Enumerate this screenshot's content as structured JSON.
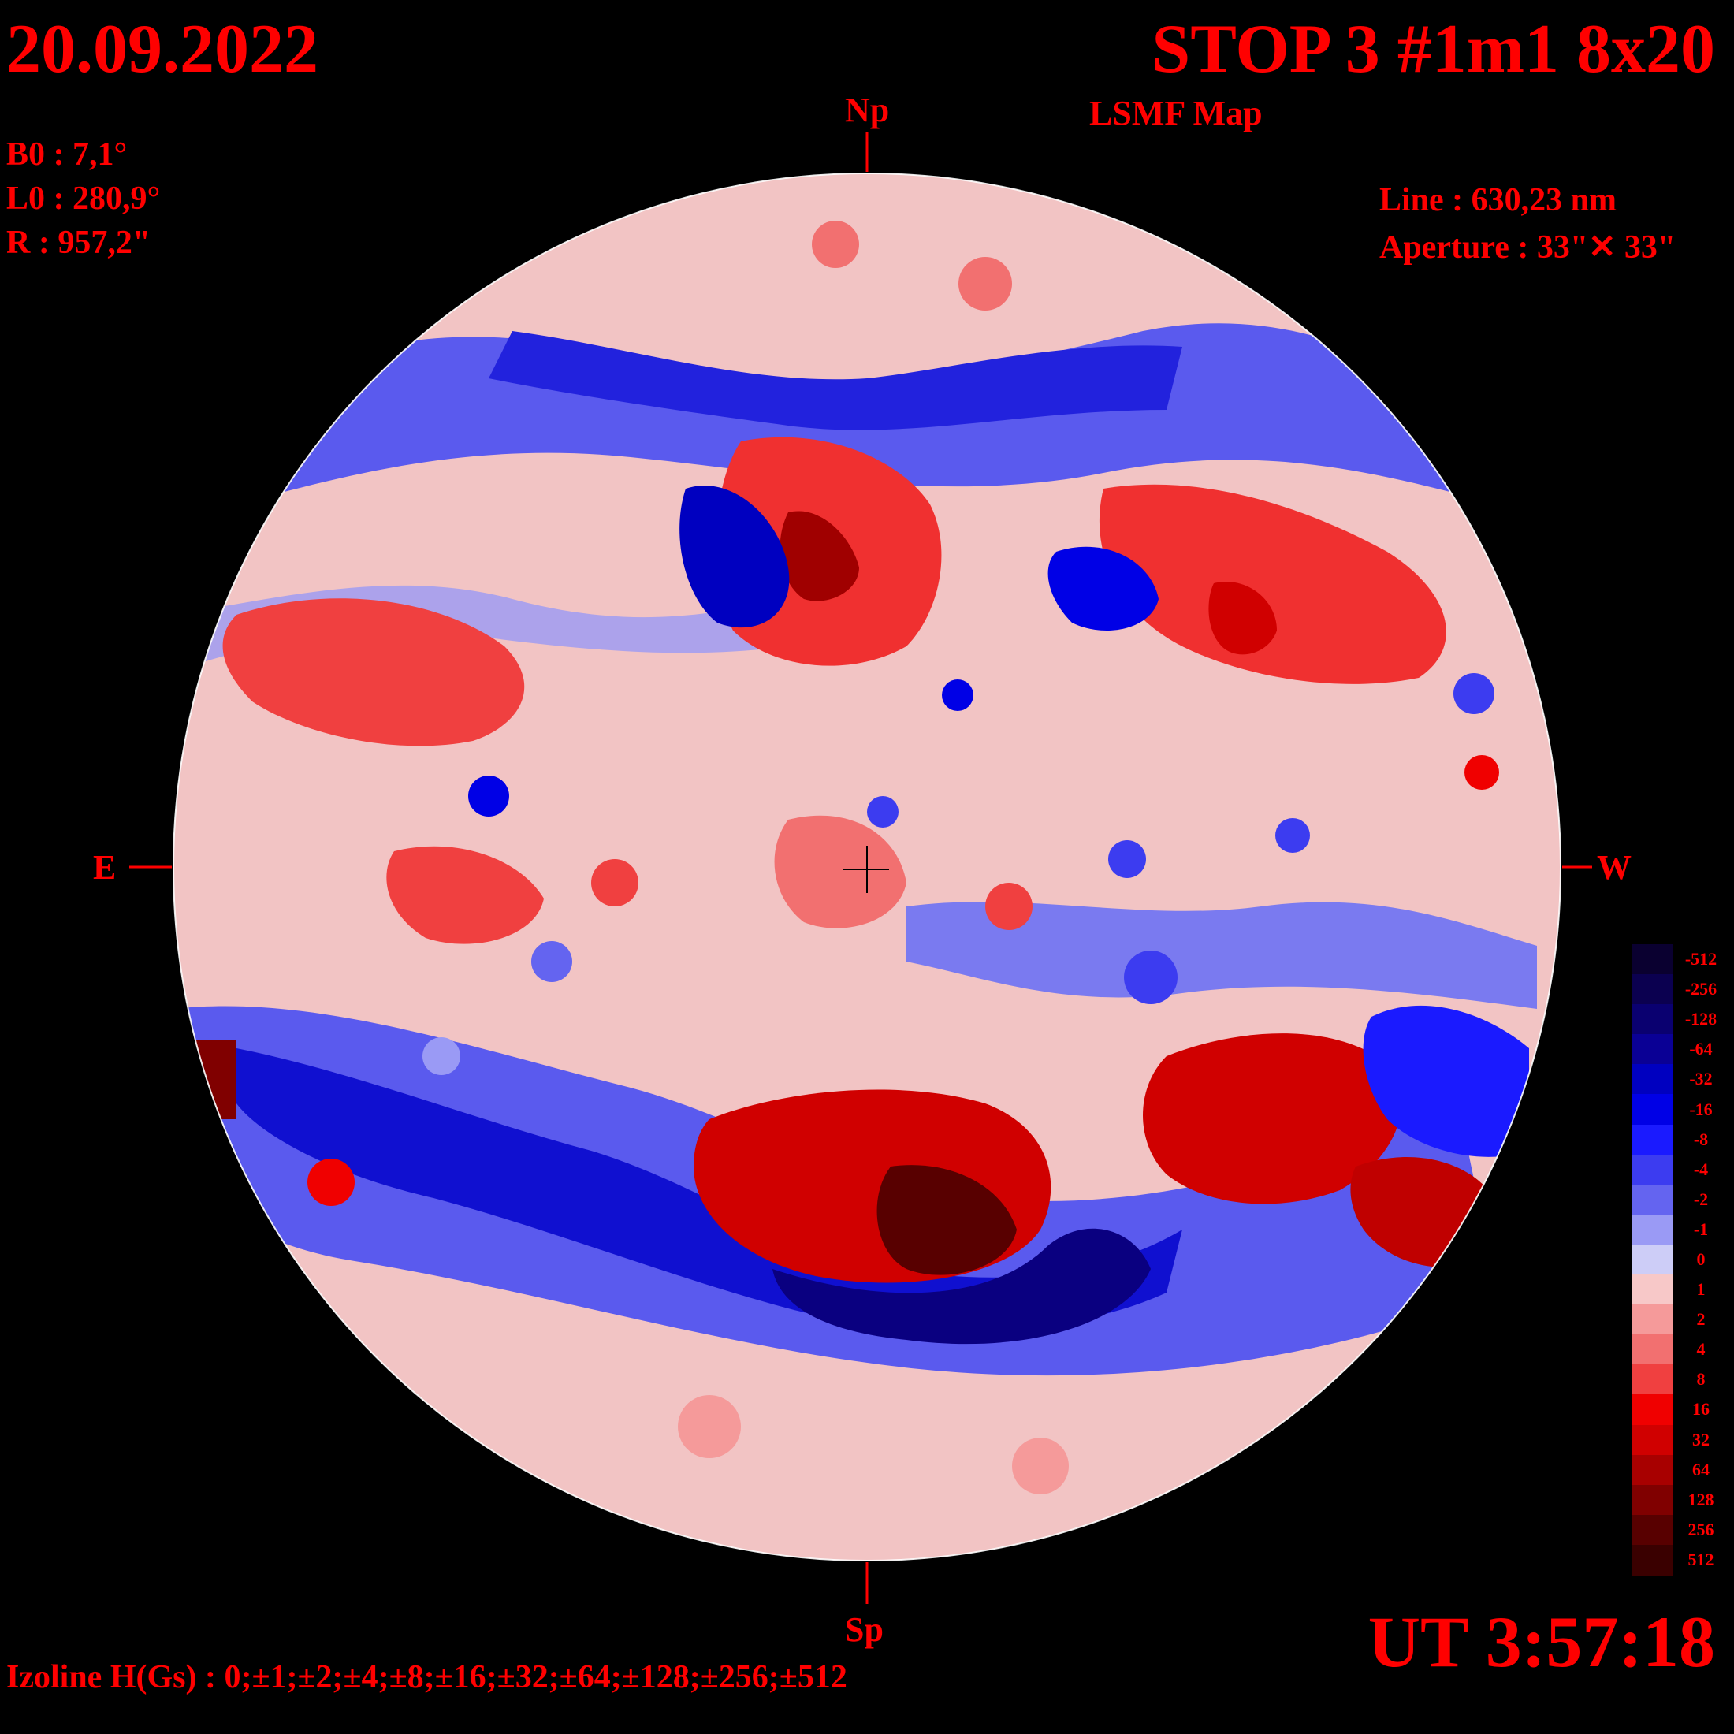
{
  "header": {
    "date": "20.09.2022",
    "title": "STOP 3 #1m1 8x20",
    "subtitle": "LSMF  Map"
  },
  "params": {
    "b0": "B0 : 7,1°",
    "l0": "L0 : 280,9°",
    "r": "R  : 957,2\""
  },
  "instrument": {
    "line": "Line :  630,23 nm",
    "aperture": "Aperture : 33\"✕ 33\""
  },
  "compass": {
    "north": "Np",
    "south": "Sp",
    "east": "E",
    "west": "W"
  },
  "time": "UT 3:57:18",
  "izoline": "Izoline H(Gs) : 0;±1;±2;±4;±8;±16;±32;±64;±128;±256;±512",
  "legend": {
    "labels": [
      "-512",
      "-256",
      "-128",
      "-64",
      "-32",
      "-16",
      "-8",
      "-4",
      "-2",
      "-1",
      "0",
      "1",
      "2",
      "4",
      "8",
      "16",
      "32",
      "64",
      "128",
      "256",
      "512"
    ],
    "colors": [
      "#0a0030",
      "#0b0050",
      "#0a0070",
      "#0a0095",
      "#0000c0",
      "#0000e6",
      "#1a1aff",
      "#3c3cf0",
      "#6464f0",
      "#9a9af5",
      "#cdcdf7",
      "#f7c8c8",
      "#f59a9a",
      "#f27070",
      "#f04040",
      "#f00000",
      "#d00000",
      "#a80000",
      "#800000",
      "#580000",
      "#3a0000"
    ]
  },
  "colors": {
    "text": "#ff0000",
    "background": "#000000",
    "neutral_positive": "#f7c8c8",
    "neutral_negative": "#cdcdf7"
  }
}
